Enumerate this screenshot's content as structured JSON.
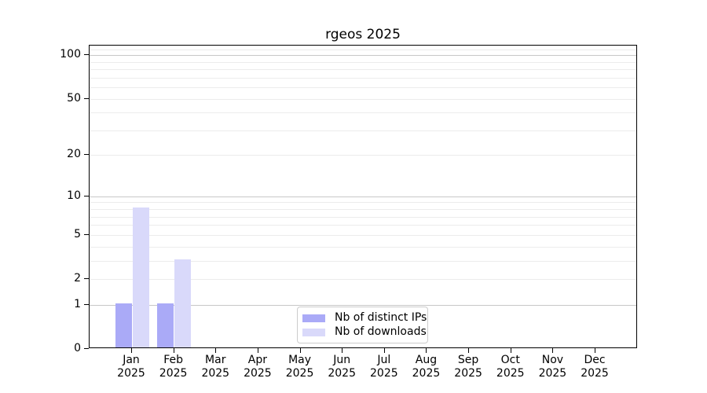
{
  "title": "rgeos 2025",
  "chart_data": {
    "type": "bar",
    "title": "rgeos 2025",
    "categories": [
      "Jan",
      "Feb",
      "Mar",
      "Apr",
      "May",
      "Jun",
      "Jul",
      "Aug",
      "Sep",
      "Oct",
      "Nov",
      "Dec"
    ],
    "category_year": "2025",
    "series": [
      {
        "name": "Nb of distinct IPs",
        "color": "#aaaaf7",
        "values": [
          1,
          1,
          0,
          0,
          0,
          0,
          0,
          0,
          0,
          0,
          0,
          0
        ]
      },
      {
        "name": "Nb of downloads",
        "color": "#d9d9fa",
        "values": [
          8,
          3,
          0,
          0,
          0,
          0,
          0,
          0,
          0,
          0,
          0,
          0
        ]
      }
    ],
    "xlabel": "",
    "ylabel": "",
    "yscale": "log1p",
    "ylim": [
      0,
      117
    ],
    "y_ticks": [
      0,
      1,
      2,
      5,
      10,
      20,
      50,
      100
    ],
    "y_major_gridlines": [
      1,
      10,
      100
    ],
    "y_minor_gridlines": [
      2,
      3,
      4,
      5,
      6,
      7,
      8,
      9,
      20,
      30,
      40,
      50,
      60,
      70,
      80,
      90,
      110
    ],
    "grid": true,
    "legend_position": "bottom-center"
  },
  "colors": {
    "background": "#ffffff",
    "text": "#000000",
    "spine": "#000000",
    "grid_major": "#c8c8c8",
    "grid_minor": "#ececec",
    "legend_border": "#cccccc",
    "series_distinct_ips": "#aaaaf7",
    "series_downloads": "#d9d9fa"
  }
}
